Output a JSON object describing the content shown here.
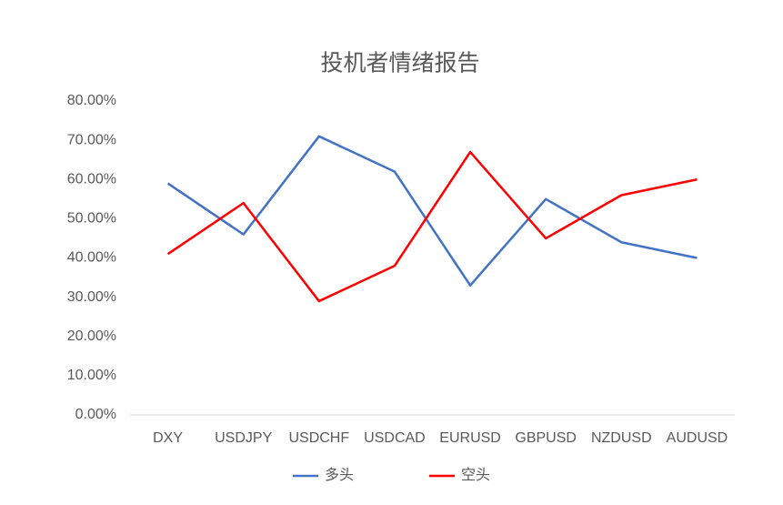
{
  "chart_data": {
    "type": "line",
    "title": "投机者情绪报告",
    "categories": [
      "DXY",
      "USDJPY",
      "USDCHF",
      "USDCAD",
      "EURUSD",
      "GBPUSD",
      "NZDUSD",
      "AUDUSD"
    ],
    "series": [
      {
        "name": "多头",
        "color": "#4472c4",
        "values": [
          59,
          46,
          71,
          62,
          33,
          55,
          44,
          40
        ]
      },
      {
        "name": "空头",
        "color": "#ff0000",
        "values": [
          41,
          54,
          29,
          38,
          67,
          45,
          56,
          60
        ]
      }
    ],
    "ylim": [
      0,
      80
    ],
    "yticks": [
      {
        "value": 0,
        "label": "0.00%"
      },
      {
        "value": 10,
        "label": "10.00%"
      },
      {
        "value": 20,
        "label": "20.00%"
      },
      {
        "value": 30,
        "label": "30.00%"
      },
      {
        "value": 40,
        "label": "40.00%"
      },
      {
        "value": 50,
        "label": "50.00%"
      },
      {
        "value": 60,
        "label": "60.00%"
      },
      {
        "value": 70,
        "label": "70.00%"
      },
      {
        "value": 80,
        "label": "80.00%"
      }
    ],
    "grid": false,
    "legend": "bottom"
  }
}
